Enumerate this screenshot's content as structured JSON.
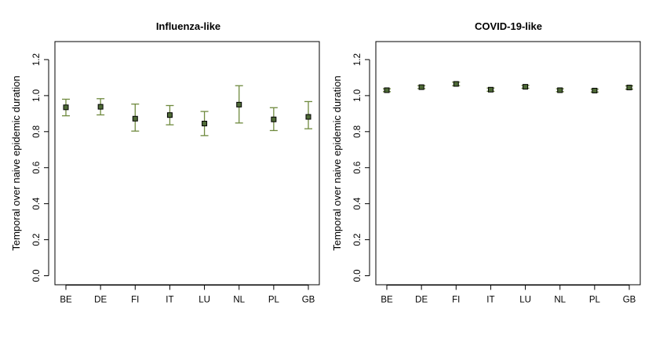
{
  "chart_data": [
    {
      "type": "scatter",
      "title": "Influenza-like",
      "xlabel": "",
      "ylabel": "Temporal over naive epidemic duration",
      "ylim": [
        -0.05,
        1.3
      ],
      "y_ticks": [
        "0.0",
        "0.2",
        "0.4",
        "0.6",
        "0.8",
        "1.0",
        "1.2"
      ],
      "categories": [
        "BE",
        "DE",
        "FI",
        "IT",
        "LU",
        "NL",
        "PL",
        "GB"
      ],
      "values": [
        0.935,
        0.938,
        0.872,
        0.892,
        0.845,
        0.95,
        0.868,
        0.882
      ],
      "lower": [
        0.888,
        0.893,
        0.803,
        0.838,
        0.778,
        0.848,
        0.806,
        0.816
      ],
      "upper": [
        0.98,
        0.983,
        0.953,
        0.945,
        0.912,
        1.055,
        0.933,
        0.967
      ],
      "grid": false,
      "colors": {
        "point": "#4e6a36",
        "errorbar": "#6f8a3e",
        "outline": "#000000"
      }
    },
    {
      "type": "scatter",
      "title": "COVID-19-like",
      "xlabel": "",
      "ylabel": "Temporal over naive epidemic duration",
      "ylim": [
        -0.05,
        1.3
      ],
      "y_ticks": [
        "0.0",
        "0.2",
        "0.4",
        "0.6",
        "0.8",
        "1.0",
        "1.2"
      ],
      "categories": [
        "BE",
        "DE",
        "FI",
        "IT",
        "LU",
        "NL",
        "PL",
        "GB"
      ],
      "values": [
        1.03,
        1.047,
        1.065,
        1.033,
        1.049,
        1.03,
        1.028,
        1.045
      ],
      "lower": [
        1.022,
        1.039,
        1.055,
        1.024,
        1.041,
        1.022,
        1.02,
        1.036
      ],
      "upper": [
        1.038,
        1.055,
        1.075,
        1.042,
        1.057,
        1.038,
        1.036,
        1.054
      ],
      "grid": false,
      "colors": {
        "point": "#4e6a36",
        "errorbar": "#6f8a3e",
        "outline": "#000000"
      }
    }
  ]
}
